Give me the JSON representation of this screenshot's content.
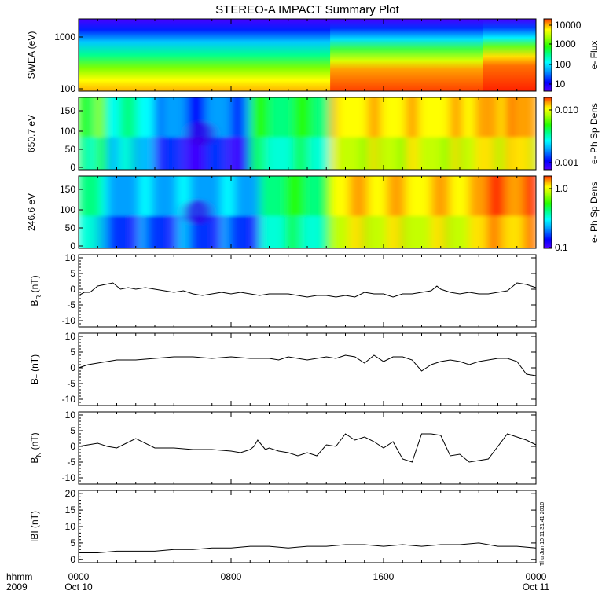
{
  "chart_data": [
    {
      "type": "heatmap",
      "title": "STEREO-A IMPACT Summary Plot",
      "ylabel": "SWEA (eV)",
      "yscale": "log",
      "yticks": [
        "1000",
        "100"
      ],
      "colorbar": {
        "label": "e- Flux",
        "scale": "log",
        "ticks": [
          "10000",
          "1000",
          "100",
          "10"
        ]
      },
      "x_domain": [
        0,
        24
      ],
      "segments": [
        {
          "start": 0,
          "end": 13.2,
          "level": "low"
        },
        {
          "start": 13.2,
          "end": 21.2,
          "level": "high"
        },
        {
          "start": 21.2,
          "end": 24,
          "level": "highest"
        }
      ]
    },
    {
      "type": "heatmap",
      "ylabel": "650.7 eV",
      "ylim": [
        0,
        180
      ],
      "yticks": [
        "150",
        "100",
        "50",
        "0"
      ],
      "colorbar": {
        "label": "e- Ph Sp Dens",
        "scale": "log",
        "ticks": [
          "0.010",
          "0.001"
        ]
      },
      "x_domain": [
        0,
        24
      ],
      "segments": [
        {
          "start": 0,
          "end": 1.5,
          "level": 0.55
        },
        {
          "start": 1.5,
          "end": 4,
          "level": 0.4
        },
        {
          "start": 4,
          "end": 9,
          "level": 0.22
        },
        {
          "start": 9,
          "end": 13.2,
          "level": 0.5
        },
        {
          "start": 13.2,
          "end": 20.8,
          "level": 0.78
        },
        {
          "start": 20.8,
          "end": 24,
          "level": 0.86
        }
      ]
    },
    {
      "type": "heatmap",
      "ylabel": "246.6 eV",
      "ylim": [
        0,
        180
      ],
      "yticks": [
        "150",
        "100",
        "50",
        "0"
      ],
      "colorbar": {
        "label": "e- Ph Sp Dens",
        "scale": "log",
        "ticks": [
          "1.0",
          "0.1"
        ]
      },
      "x_domain": [
        0,
        24
      ],
      "segments": [
        {
          "start": 0,
          "end": 1.5,
          "level": 0.45
        },
        {
          "start": 1.5,
          "end": 9.5,
          "level": 0.28
        },
        {
          "start": 9.5,
          "end": 13.2,
          "level": 0.5
        },
        {
          "start": 13.2,
          "end": 20.8,
          "level": 0.8
        },
        {
          "start": 20.8,
          "end": 24,
          "level": 0.9
        }
      ]
    },
    {
      "type": "line",
      "ylabel": "BR (nT)",
      "ylabel_main": "B",
      "ylabel_sub": "R",
      "ylabel_unit": "(nT)",
      "ylim": [
        -12,
        11
      ],
      "yticks": [
        10,
        5,
        0,
        -5,
        -10
      ],
      "x": [
        0,
        0.3,
        0.6,
        1,
        1.4,
        1.8,
        2.2,
        2.6,
        3,
        3.5,
        4,
        4.5,
        5,
        5.5,
        6,
        6.5,
        7,
        7.5,
        8,
        8.5,
        9,
        9.5,
        10,
        10.5,
        11,
        11.5,
        12,
        12.5,
        13,
        13.5,
        14,
        14.5,
        15,
        15.5,
        16,
        16.5,
        17,
        17.5,
        18,
        18.5,
        18.8,
        19,
        19.5,
        20,
        20.5,
        21,
        21.5,
        22,
        22.5,
        23,
        23.5,
        24
      ],
      "y": [
        -2,
        -1,
        -1,
        1,
        1.5,
        2,
        0,
        0.5,
        0,
        0.5,
        0,
        -0.5,
        -1,
        -0.5,
        -1.5,
        -2,
        -1.5,
        -1,
        -1.5,
        -1,
        -1.5,
        -2,
        -1.5,
        -1.5,
        -1.5,
        -2,
        -2.5,
        -2,
        -2,
        -2.5,
        -2,
        -2.5,
        -1,
        -1.5,
        -1.5,
        -2.5,
        -1.5,
        -1.5,
        -1,
        -0.5,
        1,
        0,
        -1,
        -1.5,
        -1,
        -1.5,
        -1.5,
        -1,
        -0.5,
        2,
        1.5,
        0.5
      ]
    },
    {
      "type": "line",
      "ylabel": "BT (nT)",
      "ylabel_main": "B",
      "ylabel_sub": "T",
      "ylabel_unit": "(nT)",
      "ylim": [
        -12,
        11
      ],
      "yticks": [
        10,
        5,
        0,
        -5,
        -10
      ],
      "x": [
        0,
        0.5,
        1,
        1.5,
        2,
        3,
        4,
        5,
        6,
        7,
        8,
        9,
        10,
        10.5,
        11,
        11.5,
        12,
        12.5,
        13,
        13.5,
        14,
        14.5,
        15,
        15.5,
        16,
        16.5,
        17,
        17.5,
        18,
        18.5,
        19,
        19.5,
        20,
        20.5,
        21,
        21.5,
        22,
        22.5,
        23,
        23.5,
        24
      ],
      "y": [
        0,
        1,
        1.5,
        2,
        2.5,
        2.5,
        3,
        3.5,
        3.5,
        3,
        3.5,
        3,
        3,
        2.5,
        3.5,
        3,
        2.5,
        3,
        3.5,
        3,
        4,
        3.5,
        1.5,
        4,
        2,
        3.5,
        3.5,
        2.5,
        -1,
        1,
        2,
        2.5,
        2,
        1,
        2,
        2.5,
        3,
        3,
        2,
        -2,
        -2.5
      ]
    },
    {
      "type": "line",
      "ylabel": "BN (nT)",
      "ylabel_main": "B",
      "ylabel_sub": "N",
      "ylabel_unit": "(nT)",
      "ylim": [
        -12,
        11
      ],
      "yticks": [
        10,
        5,
        0,
        -5,
        -10
      ],
      "x": [
        0,
        0.5,
        1,
        1.5,
        2,
        2.5,
        3,
        4,
        5,
        6,
        7,
        8,
        8.5,
        9,
        9.2,
        9.4,
        9.8,
        10,
        10.5,
        11,
        11.5,
        12,
        12.5,
        13,
        13.5,
        14,
        14.5,
        15,
        15.5,
        16,
        16.5,
        17,
        17.5,
        18,
        18.5,
        19,
        19.5,
        20,
        20.5,
        21,
        21.5,
        22,
        22.5,
        23,
        23.5,
        24
      ],
      "y": [
        0,
        0.5,
        1,
        0,
        -0.5,
        1,
        2.5,
        -0.5,
        -0.5,
        -1,
        -1,
        -1.5,
        -2,
        -1,
        0,
        2,
        -1,
        -0.5,
        -1.5,
        -2,
        -3,
        -2,
        -3,
        0.5,
        0,
        4,
        2,
        3,
        1.5,
        -0.5,
        1.5,
        -4,
        -5,
        4,
        4,
        3.5,
        -3,
        -2.5,
        -5,
        -4.5,
        -4,
        0,
        4,
        3,
        2,
        0.5
      ]
    },
    {
      "type": "line",
      "ylabel": "|B| (nT)",
      "ylabel_text": "IBI (nT)",
      "ylim": [
        -1,
        21
      ],
      "yticks": [
        20,
        15,
        10,
        5,
        0
      ],
      "x": [
        0,
        1,
        2,
        3,
        4,
        5,
        6,
        7,
        8,
        9,
        10,
        11,
        12,
        13,
        14,
        15,
        16,
        17,
        18,
        19,
        20,
        21,
        22,
        23,
        24
      ],
      "y": [
        2,
        2,
        2.5,
        2.5,
        2.5,
        3,
        3,
        3.5,
        3.5,
        4,
        4,
        3.5,
        4,
        4,
        4.5,
        4.5,
        4,
        4.5,
        4,
        4.5,
        4.5,
        5,
        4,
        4,
        3.5
      ]
    }
  ],
  "x_axis": {
    "ticks": [
      {
        "hour": 0,
        "hhmm": "0000",
        "date": "Oct 10"
      },
      {
        "hour": 8,
        "hhmm": "0800",
        "date": ""
      },
      {
        "hour": 16,
        "hhmm": "1600",
        "date": ""
      },
      {
        "hour": 24,
        "hhmm": "0000",
        "date": "Oct 11"
      }
    ],
    "row_label_1": "hhmm",
    "row_label_2": "2009"
  },
  "timestamp_text": "Thu Jun 10 11:31:41 2010",
  "colors": {
    "scale": [
      "#5500ff",
      "#0000ff",
      "#00a0ff",
      "#00ffff",
      "#00ff80",
      "#22ff00",
      "#aaff00",
      "#ffff00",
      "#ffa000",
      "#ff3000"
    ]
  }
}
